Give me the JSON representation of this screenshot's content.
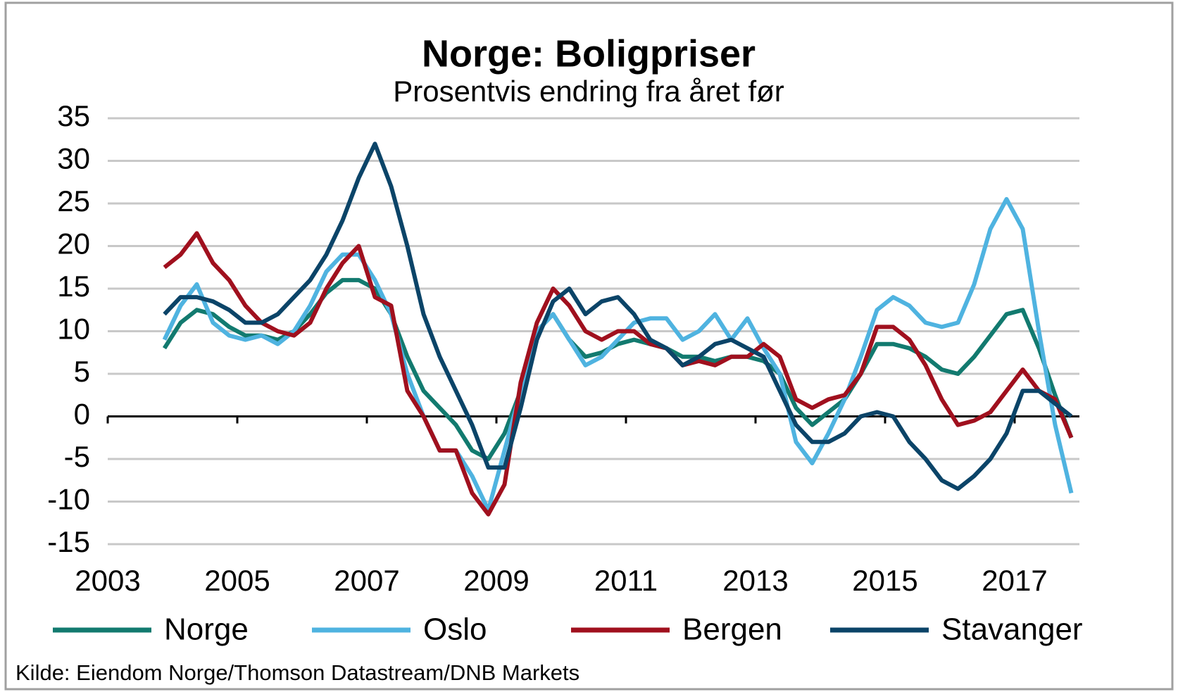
{
  "chart_data": {
    "type": "line",
    "title": "Norge: Boligpriser",
    "subtitle": "Prosentvis endring fra året før",
    "source": "Kilde: Eiendom Norge/Thomson Datastream/DNB Markets",
    "x": [
      2003.875,
      2004.125,
      2004.375,
      2004.625,
      2004.875,
      2005.125,
      2005.375,
      2005.625,
      2005.875,
      2006.125,
      2006.375,
      2006.625,
      2006.875,
      2007.125,
      2007.375,
      2007.625,
      2007.875,
      2008.125,
      2008.375,
      2008.625,
      2008.875,
      2009.125,
      2009.375,
      2009.625,
      2009.875,
      2010.125,
      2010.375,
      2010.625,
      2010.875,
      2011.125,
      2011.375,
      2011.625,
      2011.875,
      2012.125,
      2012.375,
      2012.625,
      2012.875,
      2013.125,
      2013.375,
      2013.625,
      2013.875,
      2014.125,
      2014.375,
      2014.625,
      2014.875,
      2015.125,
      2015.375,
      2015.625,
      2015.875,
      2016.125,
      2016.375,
      2016.625,
      2016.875,
      2017.125,
      2017.375,
      2017.625,
      2017.875
    ],
    "series": [
      {
        "name": "Norge",
        "color": "#127a6f",
        "values": [
          8,
          11,
          12.5,
          12,
          10.5,
          9.5,
          9.5,
          9,
          10,
          12,
          14.5,
          16,
          16,
          15,
          12,
          7,
          3,
          1,
          -1,
          -4,
          -5,
          -2,
          3,
          10,
          12,
          9,
          7,
          7.5,
          8.5,
          9,
          8.5,
          8,
          7,
          7,
          6.5,
          7,
          7,
          6.5,
          5,
          1,
          -1,
          0.5,
          2,
          5,
          8.5,
          8.5,
          8,
          7,
          5.5,
          5,
          7,
          9.5,
          12,
          12.5,
          8,
          2.5,
          -2.5
        ]
      },
      {
        "name": "Oslo",
        "color": "#4fb3e0",
        "values": [
          9,
          13,
          15.5,
          11,
          9.5,
          9,
          9.5,
          8.5,
          10,
          13,
          17,
          19,
          19,
          16,
          12,
          5,
          0,
          -4,
          -4,
          -7,
          -11,
          -4,
          3,
          10,
          12,
          9,
          6,
          7,
          9,
          11,
          11.5,
          11.5,
          9,
          10,
          12,
          9,
          11.5,
          8,
          5,
          -3,
          -5.5,
          -2,
          2,
          7,
          12.5,
          14,
          13,
          11,
          10.5,
          11,
          15.5,
          22,
          25.5,
          22,
          10,
          -1,
          -9
        ]
      },
      {
        "name": "Bergen",
        "color": "#a0101e",
        "values": [
          17.5,
          19,
          21.5,
          18,
          16,
          13,
          11,
          10,
          9.5,
          11,
          15,
          18,
          20,
          14,
          13,
          3,
          0,
          -4,
          -4,
          -9,
          -11.5,
          -8,
          4,
          11,
          15,
          13,
          10,
          9,
          10,
          10,
          8.5,
          8,
          6,
          6.5,
          6,
          7,
          7,
          8.5,
          7,
          2,
          1,
          2,
          2.5,
          5,
          10.5,
          10.5,
          9,
          6,
          2,
          -1,
          -0.5,
          0.5,
          3,
          5.5,
          3,
          2,
          -2.5
        ]
      },
      {
        "name": "Stavanger",
        "color": "#0b4468",
        "values": [
          12,
          14,
          14,
          13.5,
          12.5,
          11,
          11,
          12,
          14,
          16,
          19,
          23,
          28,
          32,
          27,
          20,
          12,
          7,
          3,
          -1,
          -6,
          -6,
          1,
          9,
          13.5,
          15,
          12,
          13.5,
          14,
          12,
          9,
          8,
          6,
          7,
          8.5,
          9,
          8,
          7,
          3,
          -1,
          -3,
          -3,
          -2,
          0,
          0.5,
          0,
          -3,
          -5,
          -7.5,
          -8.5,
          -7,
          -5,
          -2,
          3,
          3,
          1.5,
          0
        ]
      }
    ],
    "xlim": [
      2003,
      2018
    ],
    "xticks": [
      2003,
      2005,
      2007,
      2009,
      2011,
      2013,
      2015,
      2017
    ],
    "ylim": [
      -15,
      35
    ],
    "yticks": [
      -15,
      -10,
      -5,
      0,
      5,
      10,
      15,
      20,
      25,
      30,
      35
    ],
    "grid": true,
    "legend": "bottom"
  }
}
